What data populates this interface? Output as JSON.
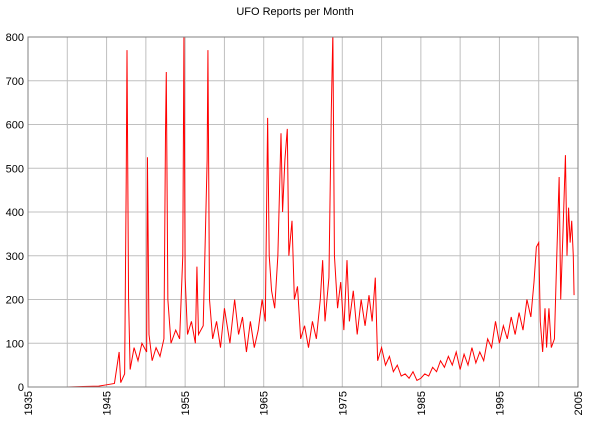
{
  "chart_data": {
    "type": "line",
    "title": "UFO Reports per Month",
    "series": [
      {
        "color": "#ff0000",
        "x": [
          1940.0,
          1942.0,
          1944.0,
          1945.0,
          1946.0,
          1946.6,
          1946.8,
          1947.3,
          1947.5,
          1947.6,
          1947.8,
          1948.0,
          1948.5,
          1949.0,
          1949.5,
          1950.1,
          1950.2,
          1950.4,
          1950.8,
          1951.3,
          1951.8,
          1952.3,
          1952.5,
          1952.6,
          1952.8,
          1953.2,
          1953.8,
          1954.3,
          1954.7,
          1954.85,
          1955.0,
          1955.3,
          1955.8,
          1956.3,
          1956.5,
          1956.7,
          1957.3,
          1957.8,
          1957.9,
          1958.1,
          1958.5,
          1959.0,
          1959.5,
          1960.0,
          1960.7,
          1961.3,
          1961.8,
          1962.3,
          1962.8,
          1963.3,
          1963.8,
          1964.3,
          1964.8,
          1965.2,
          1965.5,
          1965.7,
          1966.0,
          1966.4,
          1966.8,
          1967.2,
          1967.4,
          1967.7,
          1968.0,
          1968.2,
          1968.6,
          1968.9,
          1969.3,
          1969.7,
          1970.2,
          1970.7,
          1971.2,
          1971.7,
          1972.2,
          1972.5,
          1972.8,
          1973.3,
          1973.6,
          1973.8,
          1974.0,
          1974.4,
          1974.8,
          1975.2,
          1975.6,
          1975.9,
          1976.4,
          1976.9,
          1977.4,
          1977.9,
          1978.4,
          1978.8,
          1979.2,
          1979.5,
          1980.0,
          1980.5,
          1981.0,
          1981.5,
          1982.0,
          1982.5,
          1983.0,
          1983.5,
          1984.0,
          1984.5,
          1985.0,
          1985.5,
          1986.0,
          1986.5,
          1987.0,
          1987.5,
          1988.0,
          1988.5,
          1989.0,
          1989.5,
          1990.0,
          1990.5,
          1991.0,
          1991.5,
          1992.0,
          1992.5,
          1993.0,
          1993.5,
          1994.0,
          1994.5,
          1995.0,
          1995.5,
          1996.0,
          1996.5,
          1997.0,
          1997.5,
          1998.0,
          1998.5,
          1999.0,
          1999.4,
          1999.7,
          2000.0,
          2000.2,
          2000.5,
          2000.8,
          2001.0,
          2001.3,
          2001.6,
          2002.0,
          2002.3,
          2002.6,
          2002.8,
          2003.1,
          2003.4,
          2003.6,
          2003.8,
          2004.0,
          2004.2,
          2004.4,
          2004.5
        ],
        "values": [
          0,
          1,
          2,
          5,
          8,
          80,
          10,
          30,
          470,
          770,
          200,
          40,
          90,
          60,
          100,
          80,
          525,
          120,
          60,
          90,
          70,
          110,
          580,
          720,
          200,
          100,
          130,
          110,
          300,
          810,
          250,
          120,
          150,
          100,
          275,
          120,
          140,
          520,
          770,
          200,
          110,
          150,
          90,
          180,
          100,
          200,
          120,
          160,
          80,
          150,
          90,
          130,
          200,
          150,
          615,
          300,
          220,
          180,
          300,
          580,
          400,
          520,
          590,
          300,
          380,
          200,
          230,
          110,
          140,
          90,
          150,
          110,
          200,
          290,
          150,
          250,
          630,
          810,
          300,
          180,
          240,
          130,
          290,
          150,
          220,
          120,
          200,
          140,
          210,
          150,
          250,
          60,
          90,
          50,
          70,
          35,
          50,
          25,
          30,
          20,
          35,
          15,
          20,
          30,
          25,
          45,
          35,
          60,
          45,
          70,
          50,
          80,
          40,
          75,
          50,
          90,
          55,
          80,
          60,
          110,
          90,
          150,
          100,
          140,
          110,
          160,
          120,
          170,
          130,
          200,
          160,
          240,
          320,
          330,
          150,
          80,
          180,
          90,
          180,
          90,
          110,
          300,
          480,
          200,
          360,
          530,
          300,
          410,
          330,
          380,
          300,
          210
        ]
      }
    ],
    "xlim": [
      1935,
      2005
    ],
    "xticks": [
      1935,
      1945,
      1955,
      1965,
      1975,
      1985,
      1995,
      2005
    ],
    "xminor": [
      1940,
      1950,
      1960,
      1970,
      1980,
      1990,
      2000
    ],
    "ylim": [
      0,
      800
    ],
    "yticks": [
      0,
      100,
      200,
      300,
      400,
      500,
      600,
      700,
      800
    ],
    "grid": true
  }
}
